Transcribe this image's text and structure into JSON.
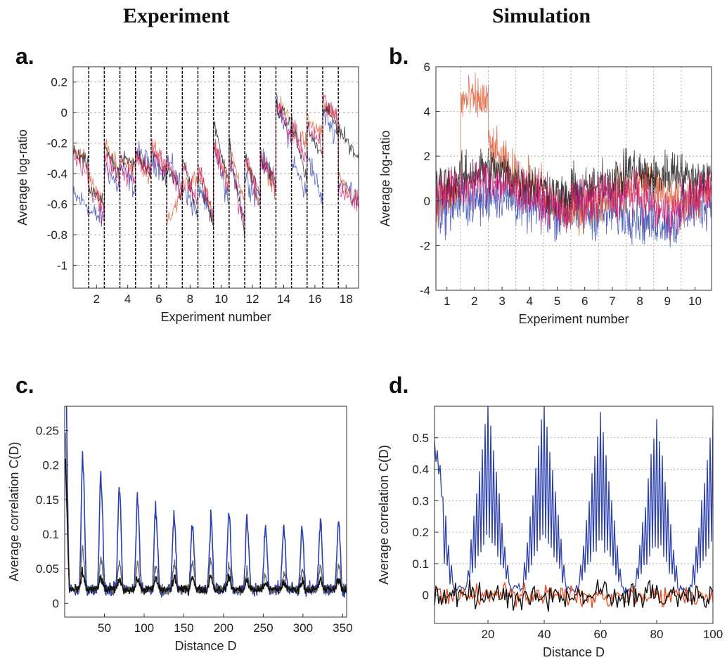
{
  "figure": {
    "column_titles": [
      "Experiment",
      "Simulation"
    ]
  },
  "colors": {
    "blue": "#2b3fae",
    "red": "#e0532a",
    "black": "#111111",
    "magenta": "#d0156e",
    "gray": "#6c6c6c",
    "grid": "#9a9a9a"
  },
  "chart_data": [
    {
      "panel_label": "a.",
      "type": "line",
      "xlabel": "Experiment number",
      "ylabel": "Average log-ratio",
      "xlim": [
        0.5,
        18.8
      ],
      "ylim": [
        -1.15,
        0.3
      ],
      "xticks": [
        2,
        4,
        6,
        8,
        10,
        12,
        14,
        16,
        18
      ],
      "yticks": [
        0.2,
        0,
        -0.2,
        -0.4,
        -0.6,
        -0.8,
        -1
      ],
      "ytick_labels": [
        "0.2",
        "0",
        "-0.2",
        "-0.4",
        "-0.6",
        "-0.8",
        "-1"
      ],
      "grid": "dashed horizontal",
      "boundaries": [
        1.5,
        2.5,
        3.5,
        4.5,
        5.5,
        6.5,
        7.5,
        8.5,
        9.5,
        10.5,
        11.5,
        12.5,
        13.5,
        14.5,
        15.5,
        16.5,
        17.5
      ],
      "series": [
        {
          "color_key": "blue",
          "noise": 0.07,
          "starts": [
            -0.55,
            -0.65,
            -0.35,
            -0.35,
            -0.25,
            -0.3,
            -0.3,
            -0.45,
            -0.45,
            -0.2,
            -0.25,
            -0.4,
            -0.3,
            0.05,
            -0.3,
            -0.25,
            0.0,
            -0.45
          ],
          "ends": [
            -0.6,
            -0.7,
            -0.5,
            -0.5,
            -0.35,
            -0.4,
            -0.5,
            -0.7,
            -0.75,
            -0.6,
            -0.7,
            -0.6,
            -0.45,
            -0.2,
            -0.55,
            -0.6,
            -0.15,
            -0.55
          ]
        },
        {
          "color_key": "red",
          "noise": 0.06,
          "starts": [
            -0.25,
            -0.4,
            -0.2,
            -0.3,
            -0.25,
            -0.2,
            -0.75,
            -0.45,
            -0.35,
            -0.2,
            -0.25,
            -0.3,
            -0.3,
            0.05,
            -0.1,
            -0.05,
            0.05,
            -0.45
          ],
          "ends": [
            -0.35,
            -0.65,
            -0.4,
            -0.35,
            -0.45,
            -0.35,
            -0.5,
            -0.45,
            -0.7,
            -0.45,
            -0.55,
            -0.6,
            -0.5,
            -0.05,
            -0.2,
            -0.15,
            -0.05,
            -0.6
          ]
        },
        {
          "color_key": "black",
          "noise": 0.05,
          "starts": [
            -0.25,
            -0.5,
            -0.2,
            -0.3,
            -0.25,
            -0.25,
            -0.35,
            -0.3,
            -0.4,
            -0.05,
            -0.2,
            -0.3,
            -0.3,
            0.05,
            -0.05,
            -0.1,
            0.05,
            -0.1
          ],
          "ends": [
            -0.35,
            -0.6,
            -0.45,
            -0.35,
            -0.4,
            -0.45,
            -0.55,
            -0.65,
            -0.75,
            -0.45,
            -0.8,
            -0.55,
            -0.45,
            -0.1,
            -0.45,
            -0.3,
            -0.1,
            -0.3
          ]
        },
        {
          "color_key": "magenta",
          "noise": 0.07,
          "starts": [
            -0.25,
            -0.45,
            -0.3,
            -0.35,
            -0.3,
            -0.25,
            -0.3,
            -0.3,
            -0.35,
            -0.2,
            -0.3,
            -0.3,
            -0.3,
            0.05,
            -0.1,
            -0.1,
            0.1,
            -0.5
          ],
          "ends": [
            -0.4,
            -0.7,
            -0.45,
            -0.45,
            -0.35,
            -0.4,
            -0.55,
            -0.6,
            -0.65,
            -0.5,
            -0.75,
            -0.55,
            -0.45,
            -0.15,
            -0.3,
            -0.25,
            -0.05,
            -0.6
          ]
        }
      ]
    },
    {
      "panel_label": "b.",
      "type": "line",
      "xlabel": "Experiment number",
      "ylabel": "Average log-ratio",
      "xlim": [
        0.6,
        10.6
      ],
      "ylim": [
        -4,
        6
      ],
      "xticks": [
        1,
        2,
        3,
        4,
        5,
        6,
        7,
        8,
        9,
        10
      ],
      "yticks": [
        6,
        4,
        2,
        0,
        -2,
        -4
      ],
      "ytick_labels": [
        "6",
        "4",
        "2",
        "0",
        "-2",
        "-4"
      ],
      "grid": "dotted horizontal and vertical",
      "boundaries": [
        1.5,
        2.5,
        3.5,
        4.5,
        5.5,
        6.5,
        7.5,
        8.5,
        9.5
      ],
      "series": [
        {
          "color_key": "blue",
          "noise": 1.0,
          "starts": [
            -0.5,
            0.0,
            0.5,
            0.0,
            -0.5,
            -0.5,
            -0.5,
            -0.5,
            -0.8,
            -0.5
          ],
          "ends": [
            0.0,
            0.0,
            0.0,
            -0.5,
            -0.5,
            -0.5,
            -0.5,
            -1.0,
            -1.0,
            0.0
          ]
        },
        {
          "color_key": "red",
          "noise": 0.9,
          "starts": [
            0.0,
            4.5,
            2.5,
            1.0,
            0.0,
            -0.5,
            0.0,
            0.5,
            0.5,
            0.0
          ],
          "ends": [
            0.5,
            4.5,
            1.0,
            0.5,
            -0.5,
            0.0,
            0.5,
            1.0,
            0.0,
            0.5
          ]
        },
        {
          "color_key": "black",
          "noise": 0.9,
          "starts": [
            0.5,
            1.0,
            1.5,
            1.0,
            0.5,
            0.5,
            1.0,
            1.5,
            1.0,
            1.0
          ],
          "ends": [
            1.0,
            1.5,
            1.0,
            0.5,
            0.0,
            0.5,
            1.0,
            1.0,
            1.5,
            1.0
          ]
        },
        {
          "color_key": "magenta",
          "noise": 0.9,
          "starts": [
            0.5,
            0.5,
            1.0,
            0.5,
            0.0,
            0.0,
            0.5,
            0.5,
            -0.5,
            0.0
          ],
          "ends": [
            0.5,
            1.0,
            0.5,
            0.0,
            -0.5,
            0.0,
            0.0,
            0.0,
            -0.5,
            0.5
          ]
        }
      ]
    },
    {
      "panel_label": "c.",
      "type": "line",
      "xlabel": "Distance D",
      "ylabel": "Average correlation C(D)",
      "xlim": [
        0,
        355
      ],
      "ylim": [
        -0.02,
        0.285
      ],
      "xticks": [
        50,
        100,
        150,
        200,
        250,
        300,
        350
      ],
      "yticks": [
        0,
        0.05,
        0.1,
        0.15,
        0.2,
        0.25
      ],
      "ytick_labels": [
        "0",
        "0.05",
        "0.1",
        "0.15",
        "0.2",
        "0.25"
      ],
      "grid": "off",
      "period": 23,
      "series": [
        {
          "color_key": "blue",
          "base": 0.02,
          "amplitude": [
            0.2,
            0.18,
            0.15,
            0.14,
            0.13,
            0.11,
            0.1,
            0.09,
            0.11,
            0.11,
            0.09,
            0.085,
            0.09,
            0.09,
            0.1
          ],
          "noise": 0.008,
          "width": 1.6
        },
        {
          "color_key": "gray",
          "base": 0.02,
          "amplitude": [
            0.07,
            0.05,
            0.04,
            0.04,
            0.035,
            0.035,
            0.04,
            0.04,
            0.04,
            0.03,
            0.02,
            0.02,
            0.025,
            0.03,
            0.035
          ],
          "noise": 0.006,
          "width": 1.4
        },
        {
          "color_key": "black",
          "base": 0.02,
          "amplitude": [
            0.03,
            0.02,
            0.015,
            0.015,
            0.015,
            0.015,
            0.02,
            0.02,
            0.02,
            0.015,
            0.01,
            0.01,
            0.01,
            0.012,
            0.015
          ],
          "noise": 0.005,
          "width": 1.6
        }
      ]
    },
    {
      "panel_label": "d.",
      "type": "line",
      "xlabel": "Distance D",
      "ylabel": "Average correlation C(D)",
      "xlim": [
        1,
        100
      ],
      "ylim": [
        -0.09,
        0.6
      ],
      "xticks": [
        20,
        40,
        60,
        80,
        100
      ],
      "yticks": [
        0,
        0.1,
        0.2,
        0.3,
        0.4,
        0.5
      ],
      "ytick_labels": [
        "0",
        "0.1",
        "0.2",
        "0.3",
        "0.4",
        "0.5"
      ],
      "grid": "dotted horizontal",
      "blue_peaks": [
        {
          "x": 20,
          "y": 0.6
        },
        {
          "x": 40,
          "y": 0.6
        },
        {
          "x": 60,
          "y": 0.56
        },
        {
          "x": 80,
          "y": 0.55
        },
        {
          "x": 100,
          "y": 0.55
        }
      ],
      "series": [
        {
          "color_key": "red",
          "noise": 0.03
        },
        {
          "color_key": "black",
          "noise": 0.035
        }
      ]
    }
  ]
}
